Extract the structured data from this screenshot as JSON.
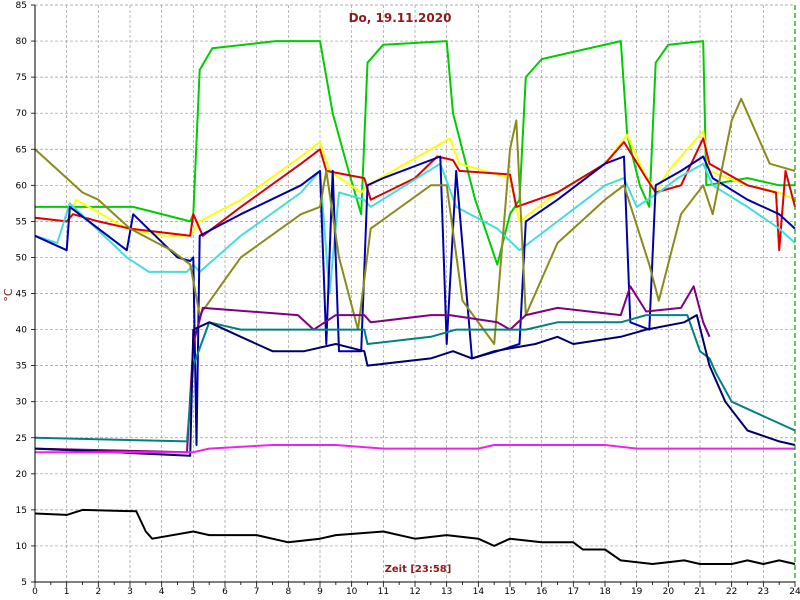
{
  "chart_data": {
    "type": "line",
    "title": "Do, 19.11.2020",
    "ylabel": "°C",
    "xlabel": "Zeit [23:58]",
    "xlim": [
      0,
      24
    ],
    "ylim": [
      5,
      85
    ],
    "x_ticks": [
      0,
      1,
      2,
      3,
      4,
      5,
      6,
      7,
      8,
      9,
      10,
      11,
      12,
      13,
      14,
      15,
      16,
      17,
      18,
      19,
      20,
      21,
      22,
      23,
      24
    ],
    "y_ticks": [
      5,
      10,
      15,
      20,
      25,
      30,
      35,
      40,
      45,
      50,
      55,
      60,
      65,
      70,
      75,
      80,
      85
    ],
    "grid": true,
    "marker_x": 24,
    "marker_color": "#00a000",
    "series": [
      {
        "color": "#00cc00",
        "points": [
          [
            0,
            57
          ],
          [
            3.1,
            57
          ],
          [
            4.9,
            55
          ],
          [
            5.0,
            56
          ],
          [
            5.2,
            76
          ],
          [
            5.6,
            79
          ],
          [
            6.6,
            79.5
          ],
          [
            7.6,
            80
          ],
          [
            9.0,
            80
          ],
          [
            9.4,
            70
          ],
          [
            9.9,
            62
          ],
          [
            10.3,
            56
          ],
          [
            10.5,
            77
          ],
          [
            11,
            79.5
          ],
          [
            13.0,
            80
          ],
          [
            13.2,
            70
          ],
          [
            13.9,
            58
          ],
          [
            14.6,
            49
          ],
          [
            15.0,
            56
          ],
          [
            15.3,
            58
          ],
          [
            15.5,
            75
          ],
          [
            16,
            77.5
          ],
          [
            17,
            78.5
          ],
          [
            18.5,
            80
          ],
          [
            18.7,
            67
          ],
          [
            19.1,
            60
          ],
          [
            19.4,
            57
          ],
          [
            19.6,
            77
          ],
          [
            20,
            79.5
          ],
          [
            21.1,
            80
          ],
          [
            21.2,
            60
          ],
          [
            22.5,
            61
          ],
          [
            23.5,
            60
          ],
          [
            24,
            60
          ]
        ]
      },
      {
        "color": "#ffff00",
        "points": [
          [
            0,
            55.5
          ],
          [
            1,
            55
          ],
          [
            1.3,
            58
          ],
          [
            2.9,
            54
          ],
          [
            4,
            53
          ],
          [
            4.9,
            53
          ],
          [
            5.2,
            55
          ],
          [
            6.5,
            58
          ],
          [
            8.4,
            64
          ],
          [
            9.0,
            66
          ],
          [
            9.3,
            62
          ],
          [
            10.3,
            59
          ],
          [
            10.5,
            60
          ],
          [
            12.5,
            65
          ],
          [
            13.1,
            66.5
          ],
          [
            13.4,
            63
          ],
          [
            15.0,
            61
          ],
          [
            15.3,
            55
          ],
          [
            16.5,
            59
          ],
          [
            18,
            63
          ],
          [
            18.7,
            67
          ],
          [
            19.2,
            62
          ],
          [
            19.6,
            59
          ],
          [
            20,
            62
          ],
          [
            21.1,
            67.5
          ],
          [
            21.3,
            62
          ],
          [
            22.5,
            60
          ],
          [
            23.5,
            59
          ],
          [
            24,
            58
          ]
        ]
      },
      {
        "color": "#dd0000",
        "points": [
          [
            0,
            55.5
          ],
          [
            1,
            55
          ],
          [
            1.2,
            56
          ],
          [
            2,
            55
          ],
          [
            3,
            54
          ],
          [
            4.9,
            53
          ],
          [
            5.0,
            56
          ],
          [
            5.3,
            53
          ],
          [
            6.5,
            57
          ],
          [
            8.4,
            63
          ],
          [
            9.0,
            65
          ],
          [
            9.2,
            62
          ],
          [
            10.4,
            61
          ],
          [
            10.6,
            58
          ],
          [
            12.0,
            61
          ],
          [
            12.7,
            64
          ],
          [
            13.2,
            63.5
          ],
          [
            13.4,
            62
          ],
          [
            15.0,
            61.5
          ],
          [
            15.2,
            57
          ],
          [
            16.5,
            59
          ],
          [
            18,
            63
          ],
          [
            18.6,
            66
          ],
          [
            19.3,
            61
          ],
          [
            19.6,
            59
          ],
          [
            20.4,
            60
          ],
          [
            21.1,
            66.5
          ],
          [
            21.3,
            63
          ],
          [
            22.5,
            60
          ],
          [
            23.4,
            59
          ],
          [
            23.5,
            51
          ],
          [
            23.7,
            62
          ],
          [
            24,
            57
          ]
        ]
      },
      {
        "color": "#44dddd",
        "points": [
          [
            0,
            53
          ],
          [
            0.7,
            52
          ],
          [
            1.1,
            57.5
          ],
          [
            2.9,
            50
          ],
          [
            3.6,
            48
          ],
          [
            4.8,
            48
          ],
          [
            5.0,
            49
          ],
          [
            5.2,
            48
          ],
          [
            6.5,
            53
          ],
          [
            8.4,
            59
          ],
          [
            9.0,
            62
          ],
          [
            9.3,
            45
          ],
          [
            9.6,
            59
          ],
          [
            10.4,
            58
          ],
          [
            10.6,
            57
          ],
          [
            12.8,
            63
          ],
          [
            13.3,
            57
          ],
          [
            14.6,
            54
          ],
          [
            15.3,
            51
          ],
          [
            15.6,
            52
          ],
          [
            18,
            60
          ],
          [
            18.6,
            61
          ],
          [
            19.0,
            57
          ],
          [
            19.7,
            59
          ],
          [
            20.3,
            61
          ],
          [
            21.1,
            63
          ],
          [
            21.4,
            60
          ],
          [
            22.5,
            57
          ],
          [
            23.5,
            54
          ],
          [
            24,
            52
          ]
        ]
      },
      {
        "color": "#0000aa",
        "points": [
          [
            0,
            53
          ],
          [
            1,
            51
          ],
          [
            1.1,
            57
          ],
          [
            2.9,
            51
          ],
          [
            3.1,
            56
          ],
          [
            4.5,
            50
          ],
          [
            4.9,
            49.5
          ],
          [
            5.0,
            50
          ],
          [
            5.1,
            24
          ],
          [
            5.2,
            53
          ],
          [
            6.5,
            56
          ],
          [
            8.4,
            60
          ],
          [
            9.0,
            62
          ],
          [
            9.2,
            38
          ],
          [
            9.4,
            62
          ],
          [
            9.6,
            37
          ],
          [
            10.3,
            37
          ],
          [
            10.5,
            60
          ],
          [
            11,
            61
          ],
          [
            12.8,
            64
          ],
          [
            13.0,
            38
          ],
          [
            13.3,
            62
          ],
          [
            13.8,
            36
          ],
          [
            14.6,
            37
          ],
          [
            15.3,
            38
          ],
          [
            15.5,
            55
          ],
          [
            16.5,
            58
          ],
          [
            18,
            63
          ],
          [
            18.6,
            64
          ],
          [
            18.8,
            41
          ],
          [
            19.4,
            40
          ],
          [
            19.6,
            60
          ],
          [
            20.4,
            62
          ],
          [
            21.1,
            64
          ],
          [
            21.4,
            61
          ],
          [
            22.5,
            58
          ],
          [
            23.5,
            56
          ],
          [
            24,
            54
          ]
        ]
      },
      {
        "color": "#8b8b1a",
        "points": [
          [
            0,
            65
          ],
          [
            1.5,
            59
          ],
          [
            2,
            58
          ],
          [
            3,
            54
          ],
          [
            4.3,
            51
          ],
          [
            4.9,
            49
          ],
          [
            5.2,
            42
          ],
          [
            6.5,
            50
          ],
          [
            8.4,
            56
          ],
          [
            9.0,
            57
          ],
          [
            9.2,
            62
          ],
          [
            9.6,
            50
          ],
          [
            10.2,
            40
          ],
          [
            10.6,
            54
          ],
          [
            12.5,
            60
          ],
          [
            13.0,
            60
          ],
          [
            13.5,
            44
          ],
          [
            14.5,
            38
          ],
          [
            15.0,
            65
          ],
          [
            15.2,
            69
          ],
          [
            15.5,
            42
          ],
          [
            16.5,
            52
          ],
          [
            18,
            58
          ],
          [
            18.6,
            60
          ],
          [
            19.4,
            49
          ],
          [
            19.7,
            44
          ],
          [
            20.4,
            56
          ],
          [
            21.1,
            60
          ],
          [
            21.4,
            56
          ],
          [
            22.0,
            69
          ],
          [
            22.3,
            72
          ],
          [
            23.2,
            63
          ],
          [
            24,
            62
          ]
        ]
      },
      {
        "color": "#800080",
        "points": [
          [
            0,
            23.5
          ],
          [
            4.8,
            23
          ],
          [
            5.0,
            38
          ],
          [
            5.3,
            43
          ],
          [
            8.3,
            42
          ],
          [
            8.8,
            40
          ],
          [
            9.5,
            42
          ],
          [
            10.4,
            42
          ],
          [
            10.6,
            41
          ],
          [
            12.5,
            42
          ],
          [
            13.1,
            42
          ],
          [
            14.6,
            41
          ],
          [
            15.0,
            40
          ],
          [
            15.5,
            42
          ],
          [
            16.5,
            43
          ],
          [
            18.5,
            42
          ],
          [
            18.8,
            46
          ],
          [
            19.3,
            42.5
          ],
          [
            20.4,
            43
          ],
          [
            20.8,
            46
          ],
          [
            21.1,
            41
          ],
          [
            21.3,
            39
          ]
        ]
      },
      {
        "color": "#008080",
        "points": [
          [
            0,
            25
          ],
          [
            4.8,
            24.5
          ],
          [
            5.0,
            35
          ],
          [
            5.5,
            41
          ],
          [
            6.5,
            40
          ],
          [
            8.3,
            40
          ],
          [
            9.5,
            40
          ],
          [
            10.4,
            40
          ],
          [
            10.5,
            38
          ],
          [
            12.5,
            39
          ],
          [
            13.3,
            40
          ],
          [
            15.5,
            40
          ],
          [
            16.5,
            41
          ],
          [
            18.5,
            41
          ],
          [
            19.3,
            42
          ],
          [
            20.6,
            42
          ],
          [
            21.0,
            37
          ],
          [
            21.3,
            36
          ],
          [
            21.5,
            34
          ],
          [
            22,
            30
          ],
          [
            23,
            28
          ],
          [
            24,
            26
          ]
        ]
      },
      {
        "color": "#000066",
        "points": [
          [
            0,
            23.5
          ],
          [
            4.9,
            22.5
          ],
          [
            5.0,
            40
          ],
          [
            5.5,
            41
          ],
          [
            6.5,
            39
          ],
          [
            7.5,
            37
          ],
          [
            8.5,
            37
          ],
          [
            9.5,
            38
          ],
          [
            10.4,
            37
          ],
          [
            10.5,
            35
          ],
          [
            12.5,
            36
          ],
          [
            13.2,
            37
          ],
          [
            13.8,
            36
          ],
          [
            14.5,
            37
          ],
          [
            15.8,
            38
          ],
          [
            16.5,
            39
          ],
          [
            17,
            38
          ],
          [
            18.5,
            39
          ],
          [
            19.3,
            40
          ],
          [
            20.5,
            41
          ],
          [
            20.9,
            42
          ],
          [
            21.3,
            35
          ],
          [
            21.8,
            30
          ],
          [
            22.5,
            26
          ],
          [
            23.5,
            24.5
          ],
          [
            24,
            24
          ]
        ]
      },
      {
        "color": "#ee22ee",
        "points": [
          [
            0,
            23
          ],
          [
            5.0,
            23
          ],
          [
            5.5,
            23.5
          ],
          [
            7.5,
            24
          ],
          [
            9.5,
            24
          ],
          [
            11,
            23.5
          ],
          [
            14,
            23.5
          ],
          [
            14.5,
            24
          ],
          [
            18,
            24
          ],
          [
            19.0,
            23.5
          ],
          [
            21,
            23.5
          ],
          [
            24,
            23.5
          ]
        ]
      },
      {
        "color": "#000000",
        "points": [
          [
            0,
            14.5
          ],
          [
            1,
            14.3
          ],
          [
            1.5,
            15
          ],
          [
            3.2,
            14.8
          ],
          [
            3.5,
            12
          ],
          [
            3.7,
            11
          ],
          [
            5.0,
            12
          ],
          [
            5.5,
            11.5
          ],
          [
            7,
            11.5
          ],
          [
            8,
            10.5
          ],
          [
            9,
            11
          ],
          [
            9.5,
            11.5
          ],
          [
            11,
            12
          ],
          [
            12,
            11
          ],
          [
            13,
            11.5
          ],
          [
            14,
            11
          ],
          [
            14.5,
            10
          ],
          [
            15,
            11
          ],
          [
            16,
            10.5
          ],
          [
            17,
            10.5
          ],
          [
            17.3,
            9.5
          ],
          [
            18,
            9.5
          ],
          [
            18.5,
            8
          ],
          [
            19.5,
            7.5
          ],
          [
            20.5,
            8
          ],
          [
            21,
            7.5
          ],
          [
            22,
            7.5
          ],
          [
            22.5,
            8
          ],
          [
            23,
            7.5
          ],
          [
            23.5,
            8
          ],
          [
            24,
            7.5
          ]
        ]
      }
    ]
  }
}
